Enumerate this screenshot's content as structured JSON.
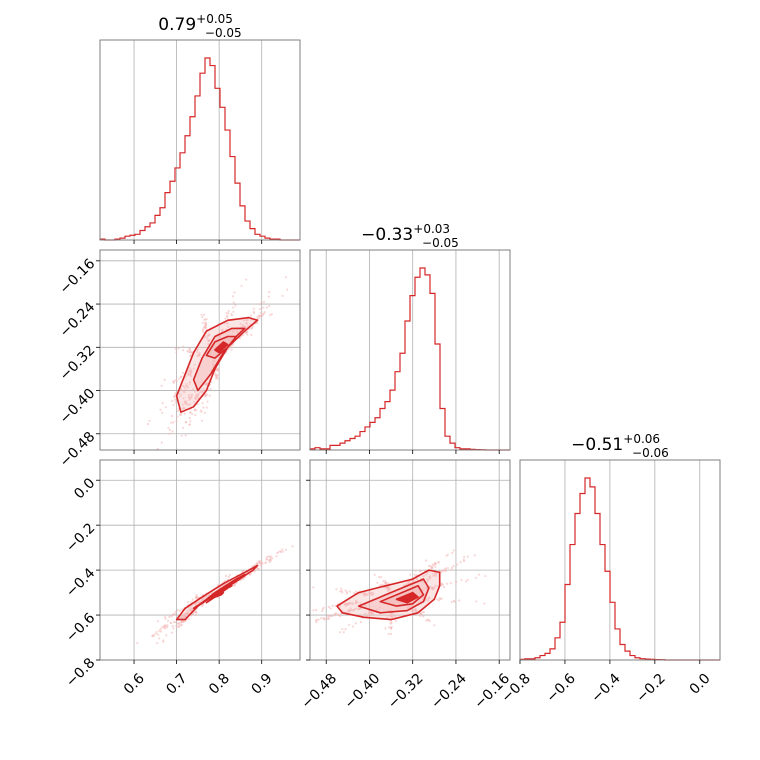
{
  "chart_data": {
    "type": "corner",
    "colors": {
      "accent": "#d62728",
      "fill": "#f4b6b6",
      "grid": "#b0b0b0",
      "frame": "#7f7f7f"
    },
    "grid": true,
    "parameters": [
      {
        "title_main": "0.79",
        "title_plus": "+0.05",
        "title_minus": "−0.05",
        "median": 0.79,
        "err_plus": 0.05,
        "err_minus": 0.05,
        "range": [
          0.52,
          0.99
        ],
        "ticks": [
          0.6,
          0.7,
          0.8,
          0.9
        ],
        "tick_labels": [
          "0.6",
          "0.7",
          "0.8",
          "0.9"
        ]
      },
      {
        "title_main": "−0.33",
        "title_plus": "+0.03",
        "title_minus": "−0.05",
        "median": -0.33,
        "err_plus": 0.03,
        "err_minus": 0.05,
        "range": [
          -0.51,
          -0.14
        ],
        "ticks": [
          -0.48,
          -0.4,
          -0.32,
          -0.24,
          -0.16
        ],
        "tick_labels": [
          "−0.48",
          "−0.40",
          "−0.32",
          "−0.24",
          "−0.16"
        ]
      },
      {
        "title_main": "−0.51",
        "title_plus": "+0.06",
        "title_minus": "−0.06",
        "median": -0.51,
        "err_plus": 0.06,
        "err_minus": 0.06,
        "range": [
          -0.8,
          0.09
        ],
        "ticks": [
          -0.8,
          -0.6,
          -0.4,
          -0.2,
          0.0
        ],
        "tick_labels": [
          "−0.8",
          "−0.6",
          "−0.4",
          "−0.2",
          "0.0"
        ]
      }
    ],
    "histograms": [
      [
        0.5,
        0,
        0,
        0.5,
        1,
        2,
        2.5,
        3,
        5,
        7,
        9,
        13,
        17,
        25,
        31,
        38,
        46,
        55,
        65,
        76,
        88,
        96,
        92,
        80,
        70,
        58,
        44,
        30,
        18,
        10,
        6,
        3,
        2,
        1,
        0.5,
        0.5,
        0,
        0,
        0,
        0
      ],
      [
        0.5,
        1,
        0.5,
        0.5,
        2,
        2,
        3,
        4,
        5,
        6,
        8,
        10,
        12,
        14,
        18,
        21,
        26,
        34,
        42,
        56,
        67,
        75,
        79,
        76,
        68,
        46,
        18,
        6,
        3,
        1,
        0.5,
        0.5,
        0.3,
        0.2,
        0.1,
        0,
        0,
        0,
        0,
        0
      ],
      [
        0.3,
        0.5,
        0.5,
        1,
        2,
        3,
        5,
        10,
        17,
        34,
        52,
        66,
        75,
        82,
        78,
        66,
        52,
        40,
        26,
        14,
        7,
        4,
        2,
        1,
        0.6,
        0.4,
        0.3,
        0.2,
        0.1,
        0,
        0,
        0,
        0,
        0,
        0,
        0,
        0,
        0,
        0,
        0
      ]
    ],
    "pairs": [
      {
        "x_param": 0,
        "y_param": 1,
        "contours": [
          [
            [
              0.7,
              -0.41
            ],
            [
              0.72,
              -0.37
            ],
            [
              0.74,
              -0.33
            ],
            [
              0.77,
              -0.29
            ],
            [
              0.82,
              -0.27
            ],
            [
              0.87,
              -0.265
            ],
            [
              0.89,
              -0.27
            ],
            [
              0.86,
              -0.29
            ],
            [
              0.82,
              -0.32
            ],
            [
              0.79,
              -0.36
            ],
            [
              0.77,
              -0.4
            ],
            [
              0.74,
              -0.43
            ],
            [
              0.71,
              -0.44
            ]
          ],
          [
            [
              0.74,
              -0.38
            ],
            [
              0.76,
              -0.34
            ],
            [
              0.79,
              -0.3
            ],
            [
              0.83,
              -0.285
            ],
            [
              0.86,
              -0.285
            ],
            [
              0.84,
              -0.3
            ],
            [
              0.81,
              -0.33
            ],
            [
              0.78,
              -0.37
            ],
            [
              0.75,
              -0.4
            ]
          ],
          [
            [
              0.77,
              -0.335
            ],
            [
              0.79,
              -0.31
            ],
            [
              0.82,
              -0.3
            ],
            [
              0.84,
              -0.3
            ],
            [
              0.82,
              -0.32
            ],
            [
              0.79,
              -0.34
            ]
          ],
          [
            [
              0.79,
              -0.325
            ],
            [
              0.81,
              -0.31
            ],
            [
              0.82,
              -0.315
            ],
            [
              0.8,
              -0.33
            ]
          ]
        ]
      },
      {
        "x_param": 0,
        "y_param": 2,
        "contours": [
          [
            [
              0.7,
              -0.62
            ],
            [
              0.72,
              -0.57
            ],
            [
              0.76,
              -0.52
            ],
            [
              0.81,
              -0.46
            ],
            [
              0.86,
              -0.41
            ],
            [
              0.89,
              -0.38
            ],
            [
              0.88,
              -0.4
            ],
            [
              0.84,
              -0.45
            ],
            [
              0.79,
              -0.51
            ],
            [
              0.75,
              -0.56
            ],
            [
              0.72,
              -0.62
            ]
          ],
          [
            [
              0.74,
              -0.57
            ],
            [
              0.78,
              -0.52
            ],
            [
              0.83,
              -0.46
            ],
            [
              0.86,
              -0.42
            ],
            [
              0.84,
              -0.44
            ],
            [
              0.79,
              -0.5
            ],
            [
              0.75,
              -0.56
            ]
          ],
          [
            [
              0.77,
              -0.545
            ],
            [
              0.8,
              -0.5
            ],
            [
              0.83,
              -0.47
            ],
            [
              0.82,
              -0.48
            ],
            [
              0.79,
              -0.52
            ]
          ],
          [
            [
              0.79,
              -0.52
            ],
            [
              0.81,
              -0.5
            ],
            [
              0.805,
              -0.51
            ]
          ]
        ]
      },
      {
        "x_param": 1,
        "y_param": 2,
        "contours": [
          [
            [
              -0.46,
              -0.56
            ],
            [
              -0.42,
              -0.5
            ],
            [
              -0.37,
              -0.47
            ],
            [
              -0.32,
              -0.44
            ],
            [
              -0.29,
              -0.4
            ],
            [
              -0.27,
              -0.41
            ],
            [
              -0.27,
              -0.47
            ],
            [
              -0.28,
              -0.53
            ],
            [
              -0.31,
              -0.59
            ],
            [
              -0.36,
              -0.62
            ],
            [
              -0.41,
              -0.61
            ],
            [
              -0.45,
              -0.59
            ]
          ],
          [
            [
              -0.42,
              -0.56
            ],
            [
              -0.37,
              -0.51
            ],
            [
              -0.33,
              -0.47
            ],
            [
              -0.3,
              -0.44
            ],
            [
              -0.29,
              -0.48
            ],
            [
              -0.3,
              -0.54
            ],
            [
              -0.33,
              -0.58
            ],
            [
              -0.38,
              -0.59
            ]
          ],
          [
            [
              -0.38,
              -0.54
            ],
            [
              -0.34,
              -0.5
            ],
            [
              -0.31,
              -0.47
            ],
            [
              -0.3,
              -0.51
            ],
            [
              -0.32,
              -0.55
            ],
            [
              -0.35,
              -0.56
            ]
          ],
          [
            [
              -0.35,
              -0.53
            ],
            [
              -0.32,
              -0.5
            ],
            [
              -0.31,
              -0.52
            ],
            [
              -0.33,
              -0.545
            ]
          ]
        ]
      }
    ]
  }
}
